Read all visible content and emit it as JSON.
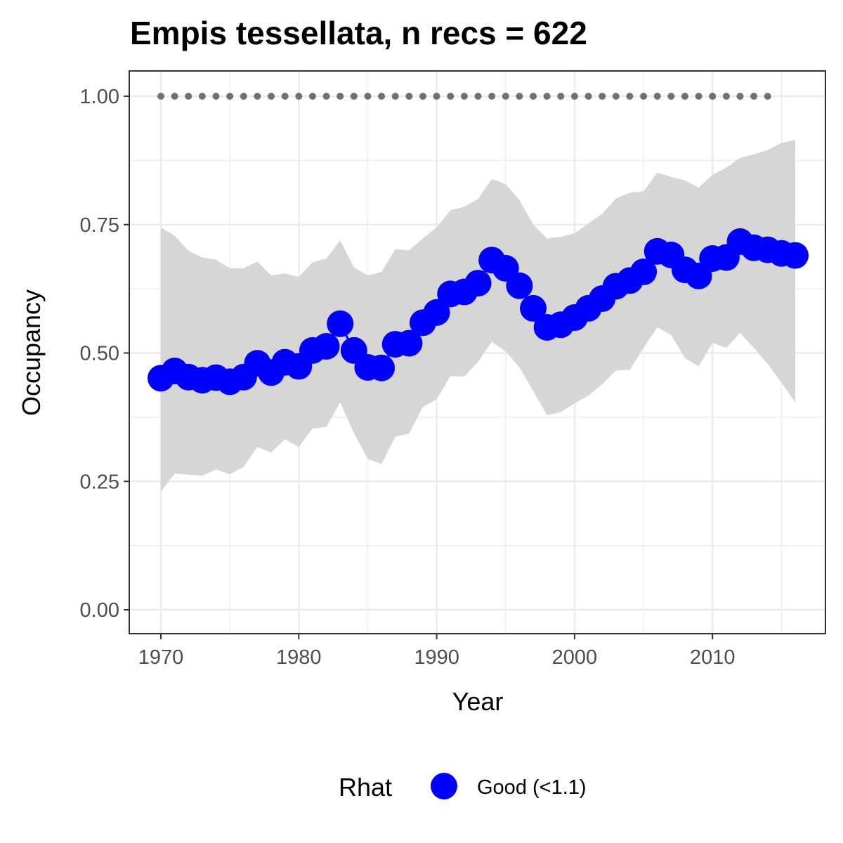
{
  "chart_data": {
    "type": "line",
    "title": "Empis tessellata, n recs = 622",
    "xlabel": "Year",
    "ylabel": "Occupancy",
    "xlim": [
      1967.8,
      1973.2
    ],
    "ylim": [
      -0.045,
      1.047
    ],
    "x_ticks": [
      1970,
      1980,
      1990,
      2000,
      2010
    ],
    "y_ticks": [
      0.0,
      0.25,
      0.5,
      0.75,
      1.0
    ],
    "x_tick_labels": [
      "1970",
      "1980",
      "1990",
      "2000",
      "2010"
    ],
    "y_tick_labels": [
      "0.00",
      "0.25",
      "0.50",
      "0.75",
      "1.00"
    ],
    "grid": true,
    "years": [
      1970,
      1971,
      1972,
      1973,
      1974,
      1975,
      1976,
      1977,
      1978,
      1979,
      1980,
      1981,
      1982,
      1983,
      1984,
      1985,
      1986,
      1987,
      1988,
      1989,
      1990,
      1991,
      1992,
      1993,
      1994,
      1995,
      1996,
      1997,
      1998,
      1999,
      2000,
      2001,
      2002,
      2003,
      2004,
      2005,
      2006,
      2007,
      2008,
      2009,
      2010,
      2011,
      2012,
      2013,
      2014,
      2015,
      2016
    ],
    "series": [
      {
        "name": "Good (<1.1)",
        "color": "#0000ff",
        "values": [
          0.451,
          0.465,
          0.453,
          0.447,
          0.452,
          0.444,
          0.453,
          0.48,
          0.462,
          0.482,
          0.474,
          0.505,
          0.513,
          0.557,
          0.505,
          0.472,
          0.471,
          0.517,
          0.519,
          0.559,
          0.579,
          0.615,
          0.619,
          0.636,
          0.681,
          0.665,
          0.631,
          0.587,
          0.55,
          0.555,
          0.569,
          0.587,
          0.606,
          0.63,
          0.641,
          0.658,
          0.698,
          0.691,
          0.662,
          0.65,
          0.684,
          0.686,
          0.717,
          0.705,
          0.701,
          0.694,
          0.69
        ]
      }
    ],
    "upper_95": [
      0.745,
      0.728,
      0.699,
      0.686,
      0.682,
      0.665,
      0.665,
      0.678,
      0.651,
      0.655,
      0.648,
      0.677,
      0.684,
      0.719,
      0.667,
      0.651,
      0.658,
      0.702,
      0.7,
      0.723,
      0.745,
      0.778,
      0.785,
      0.8,
      0.839,
      0.829,
      0.798,
      0.75,
      0.723,
      0.726,
      0.733,
      0.752,
      0.771,
      0.801,
      0.812,
      0.815,
      0.851,
      0.843,
      0.836,
      0.822,
      0.847,
      0.861,
      0.88,
      0.887,
      0.895,
      0.909,
      0.915
    ],
    "lower_95": [
      0.23,
      0.265,
      0.263,
      0.261,
      0.273,
      0.264,
      0.278,
      0.317,
      0.306,
      0.332,
      0.317,
      0.353,
      0.356,
      0.404,
      0.344,
      0.294,
      0.284,
      0.337,
      0.343,
      0.395,
      0.41,
      0.455,
      0.454,
      0.483,
      0.522,
      0.503,
      0.472,
      0.426,
      0.379,
      0.385,
      0.402,
      0.417,
      0.439,
      0.466,
      0.467,
      0.51,
      0.55,
      0.535,
      0.49,
      0.474,
      0.52,
      0.51,
      0.539,
      0.51,
      0.479,
      0.442,
      0.404
    ],
    "rhat_marker_years": [
      1970,
      1971,
      1972,
      1973,
      1974,
      1975,
      1976,
      1977,
      1978,
      1979,
      1980,
      1981,
      1982,
      1983,
      1984,
      1985,
      1986,
      1987,
      1988,
      1989,
      1990,
      1991,
      1992,
      1993,
      1994,
      1995,
      1996,
      1997,
      1998,
      1999,
      2000,
      2001,
      2002,
      2003,
      2004,
      2005,
      2006,
      2007,
      2008,
      2009,
      2010,
      2011,
      2012,
      2013,
      2014
    ],
    "rhat_marker_value": 1.0,
    "colors": {
      "series": "#0000ff",
      "ribbon": "#d6d6d6",
      "marker_dots": "#707070",
      "grid": "#ebebeb",
      "panel_border": "#333333"
    },
    "legend": {
      "title": "Rhat",
      "label": "Good (<1.1)",
      "placement": "bottom"
    }
  }
}
